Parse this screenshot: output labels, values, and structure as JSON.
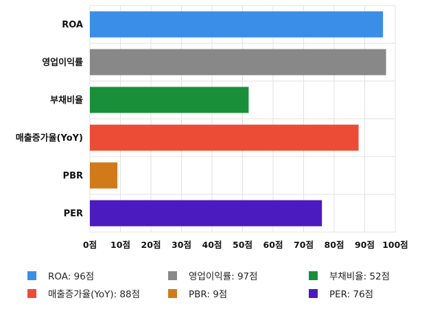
{
  "chart_data": {
    "type": "bar",
    "orientation": "horizontal",
    "categories": [
      "ROA",
      "영업이익률",
      "부채비율",
      "매출증가율(YoY)",
      "PBR",
      "PER"
    ],
    "values": [
      96,
      97,
      52,
      88,
      9,
      76
    ],
    "colors": [
      "#3a8ee6",
      "#888888",
      "#1a8f3a",
      "#ec4c36",
      "#d07a1a",
      "#4b1bbf"
    ],
    "xlim": [
      0,
      100
    ],
    "x_ticks": [
      "0점",
      "10점",
      "20점",
      "30점",
      "40점",
      "50점",
      "60점",
      "70점",
      "80점",
      "90점",
      "100점"
    ],
    "grid": true,
    "legend_position": "bottom",
    "legend": [
      "ROA: 96점",
      "영업이익률: 97점",
      "부채비율: 52점",
      "매출증가율(YoY): 88점",
      "PBR: 9점",
      "PER: 76점"
    ]
  }
}
